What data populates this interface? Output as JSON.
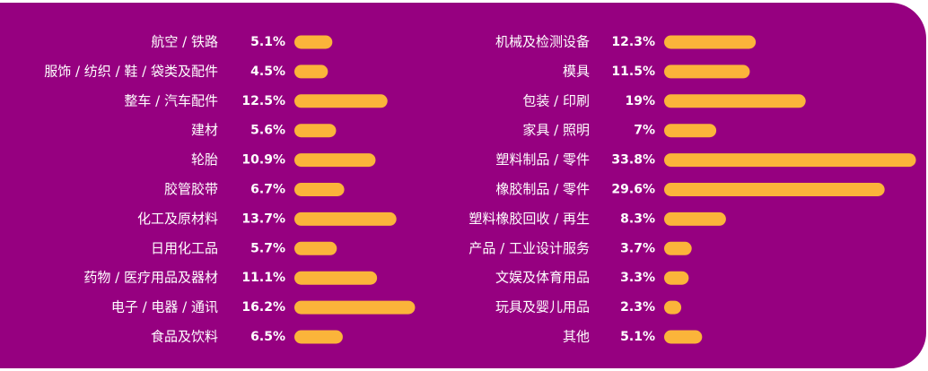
{
  "chart_data": [
    {
      "type": "bar",
      "orientation": "horizontal",
      "color": "#fbb43a",
      "categories": [
        "航空 / 铁路",
        "服饰 / 纺织 / 鞋 / 袋类及配件",
        "整车 / 汽车配件",
        "建材",
        "轮胎",
        "胶管胶带",
        "化工及原材料",
        "日用化工品",
        "药物 / 医疗用品及器材",
        "电子 / 电器 / 通讯",
        "食品及饮料"
      ],
      "values": [
        5.1,
        4.5,
        12.5,
        5.6,
        10.9,
        6.7,
        13.7,
        5.7,
        11.1,
        16.2,
        6.5
      ],
      "value_labels": [
        "5.1%",
        "4.5%",
        "12.5%",
        "5.6%",
        "10.9%",
        "6.7%",
        "13.7%",
        "5.7%",
        "11.1%",
        "16.2%",
        "6.5%"
      ]
    },
    {
      "type": "bar",
      "orientation": "horizontal",
      "color": "#fbb43a",
      "categories": [
        "机械及检测设备",
        "模具",
        "包装 / 印刷",
        "家具 / 照明",
        "塑料制品 / 零件",
        "橡胶制品 / 零件",
        "塑料橡胶回收 / 再生",
        "产品 / 工业设计服务",
        "文娱及体育用品",
        "玩具及婴儿用品",
        "其他"
      ],
      "values": [
        12.3,
        11.5,
        19,
        7,
        33.8,
        29.6,
        8.3,
        3.7,
        3.3,
        2.3,
        5.1
      ],
      "value_labels": [
        "12.3%",
        "11.5%",
        "19%",
        "7%",
        "33.8%",
        "29.6%",
        "8.3%",
        "3.7%",
        "3.3%",
        "2.3%",
        "5.1%"
      ]
    }
  ]
}
